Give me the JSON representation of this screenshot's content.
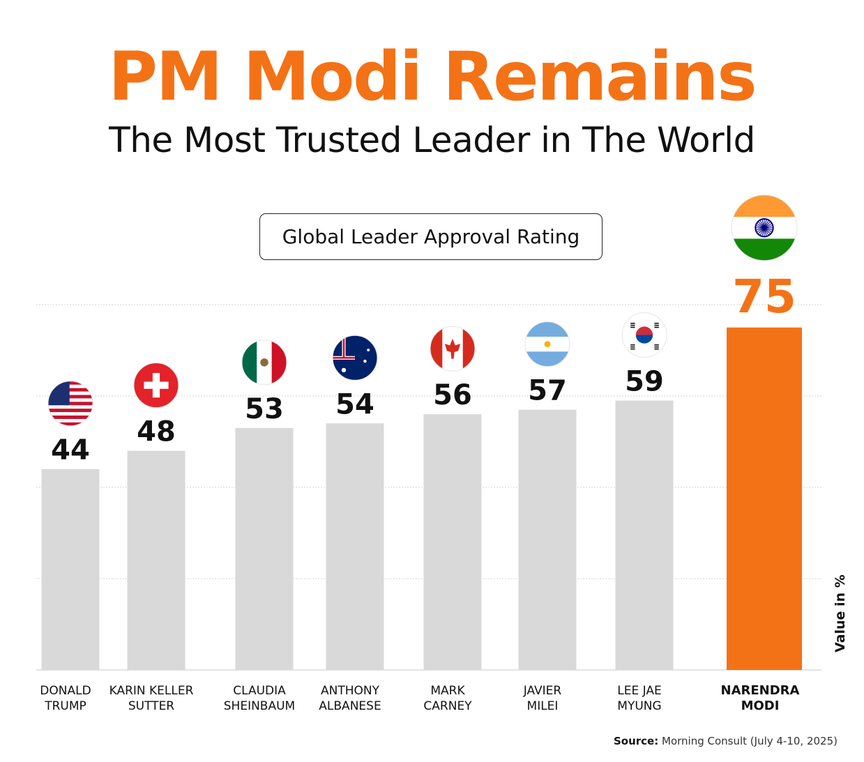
{
  "headline": "PM Modi Remains",
  "subheadline": "The Most Trusted Leader in The World",
  "source_label": "Source:",
  "source_text": "Morning Consult (July 4-10, 2025)",
  "colors": {
    "accent": "#f47216",
    "bar_gray": "#d9d9d9",
    "highlight_bar": "#f47216"
  },
  "chart_data": {
    "type": "bar",
    "title": "Global Leader Approval Rating",
    "ylabel": "Value in %",
    "xlabel": "",
    "ylim": [
      0,
      100
    ],
    "grid": true,
    "categories": [
      [
        "DONALD",
        "TRUMP"
      ],
      [
        "KARIN KELLER",
        "SUTTER"
      ],
      [
        "CLAUDIA",
        "SHEINBAUM"
      ],
      [
        "ANTHONY",
        "ALBANESE"
      ],
      [
        "MARK",
        "CARNEY"
      ],
      [
        "JAVIER",
        "MILEI"
      ],
      [
        "LEE JAE",
        "MYUNG"
      ],
      [
        "NARENDRA",
        "MODI"
      ]
    ],
    "values": [
      44,
      48,
      53,
      54,
      56,
      57,
      59,
      75
    ],
    "flags": [
      "usa-flag-icon",
      "switzerland-flag-icon",
      "mexico-flag-icon",
      "australia-flag-icon",
      "canada-flag-icon",
      "argentina-flag-icon",
      "south-korea-flag-icon",
      "india-flag-icon"
    ],
    "highlight_index": 7
  }
}
